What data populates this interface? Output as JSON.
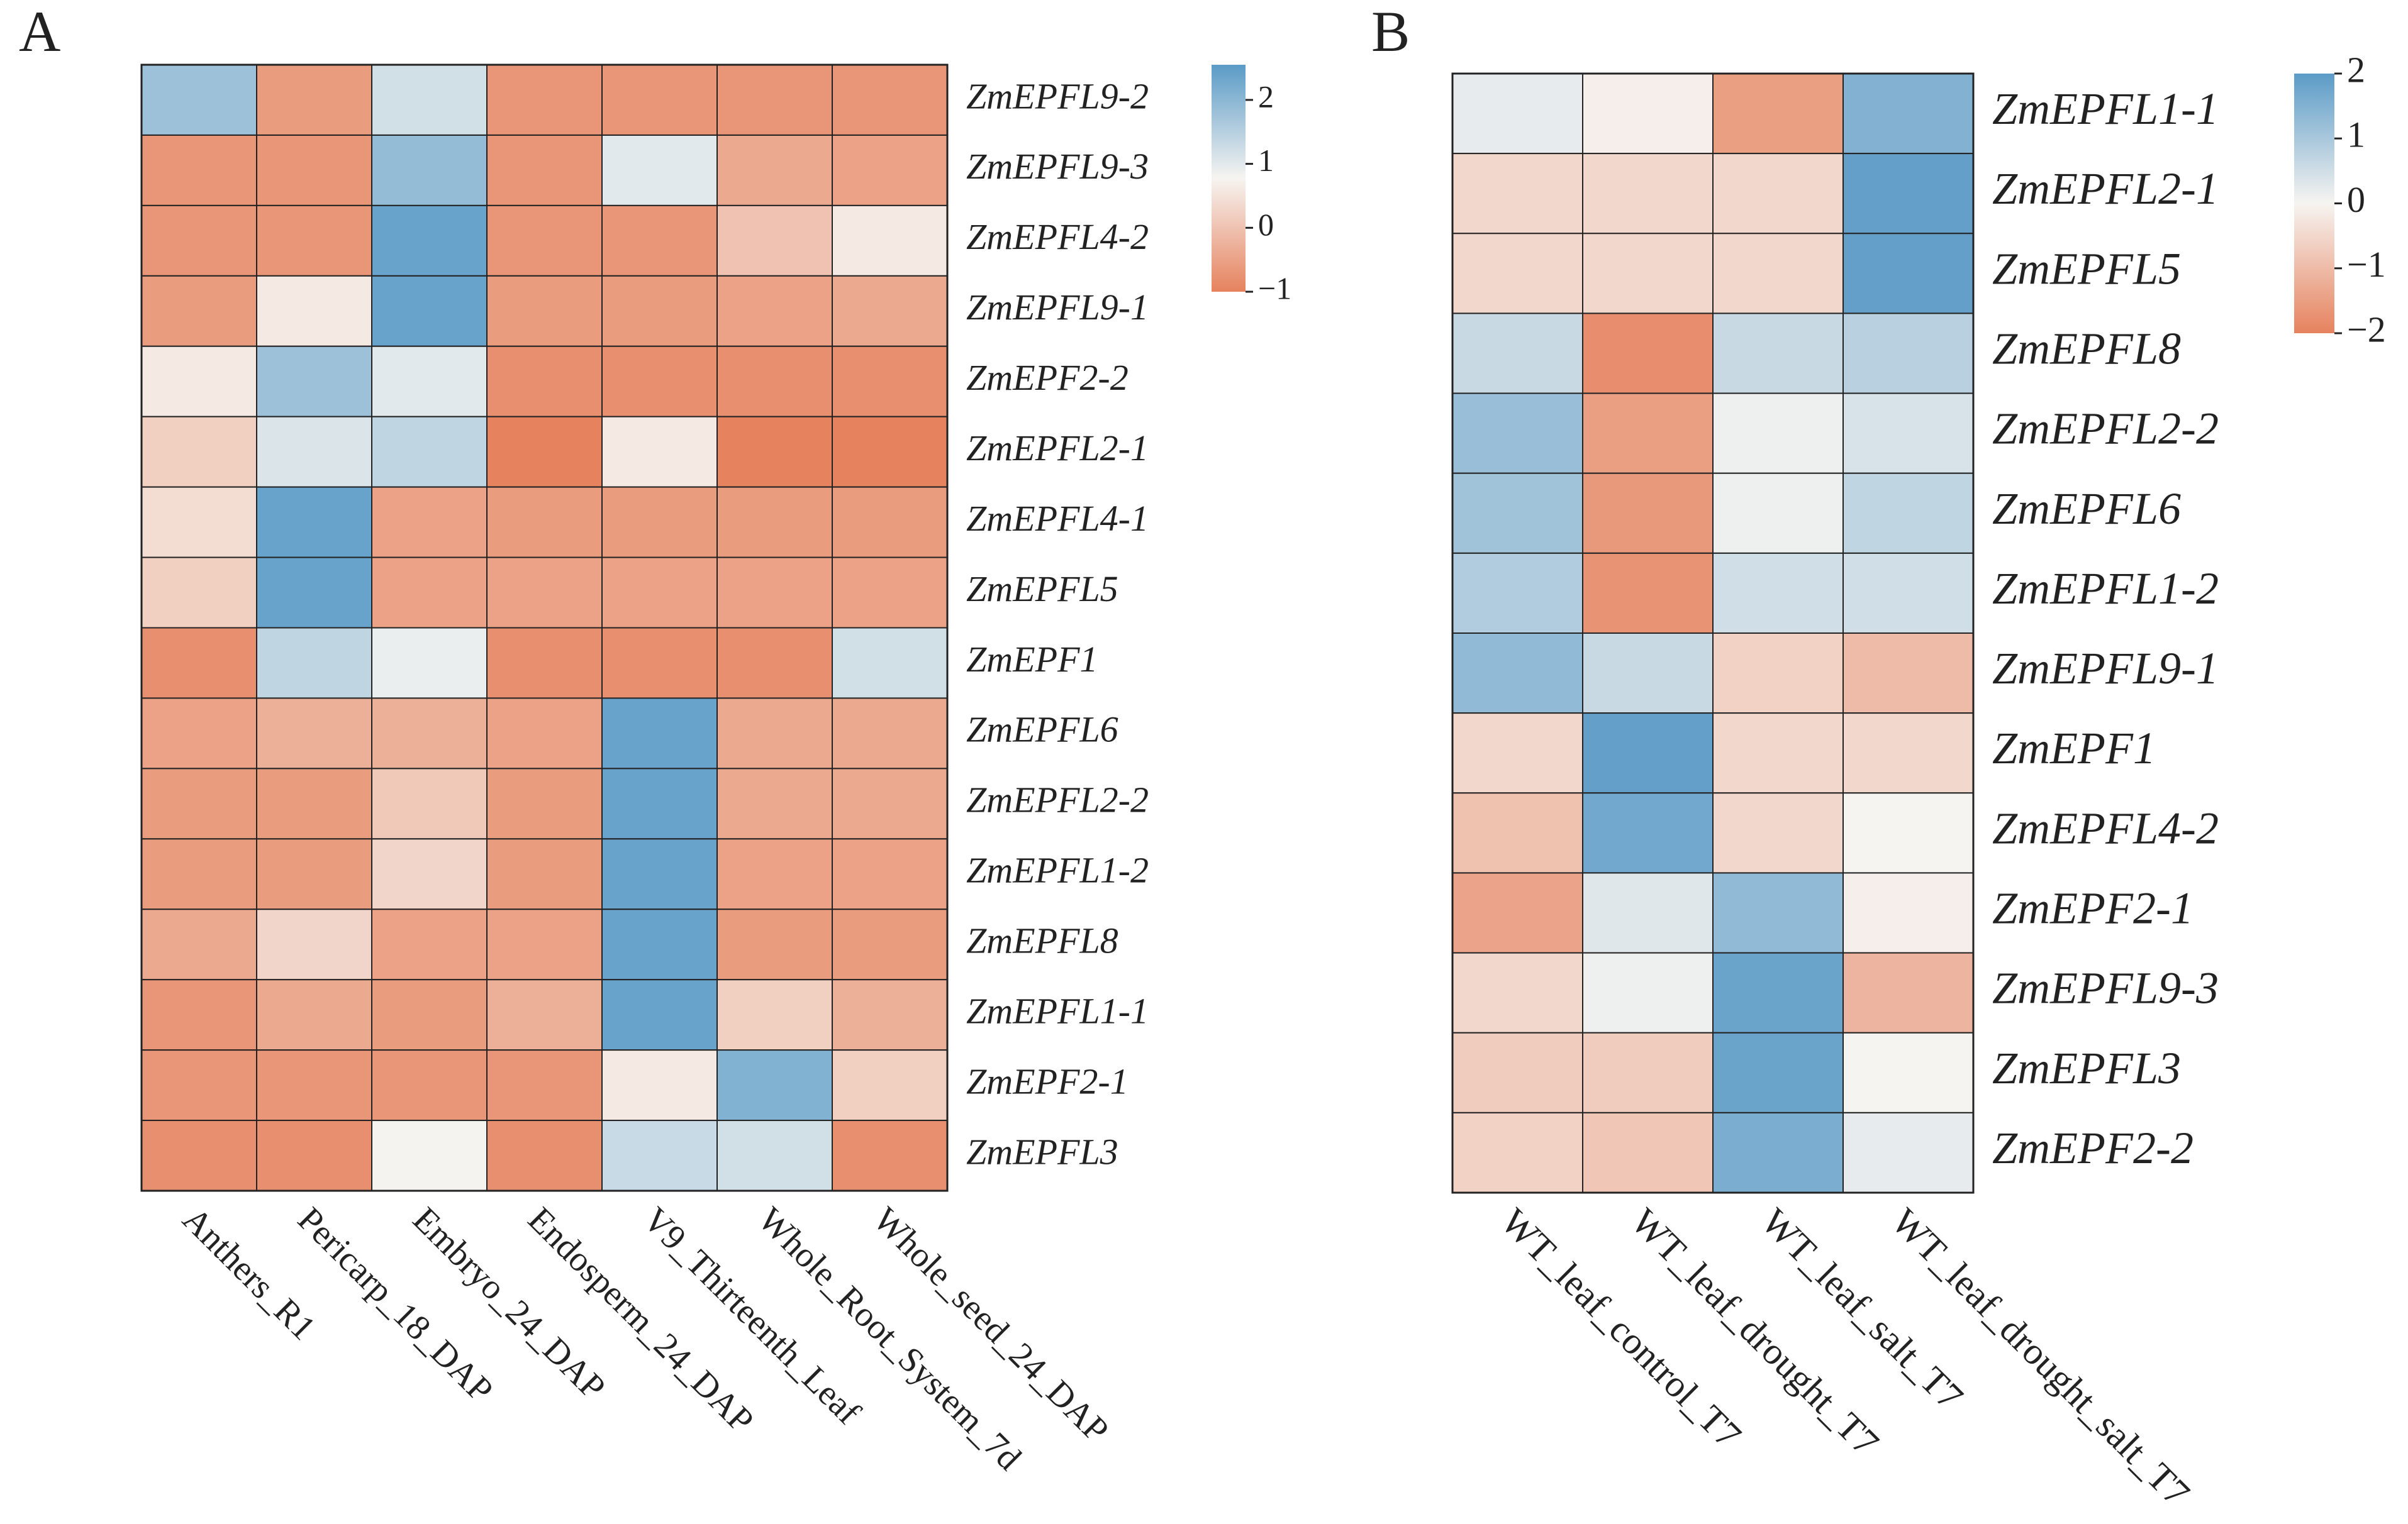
{
  "chart_data": [
    {
      "type": "heatmap",
      "panel_label": "A",
      "rows": [
        "ZmEPFL9-2",
        "ZmEPFL9-3",
        "ZmEPFL4-2",
        "ZmEPFL9-1",
        "ZmEPF2-2",
        "ZmEPFL2-1",
        "ZmEPFL4-1",
        "ZmEPFL5",
        "ZmEPF1",
        "ZmEPFL6",
        "ZmEPFL2-2",
        "ZmEPFL1-2",
        "ZmEPFL8",
        "ZmEPFL1-1",
        "ZmEPF2-1",
        "ZmEPFL3"
      ],
      "columns": [
        "Anthers_R1",
        "Pericarp_18_DAP",
        "Embryo_24_DAP",
        "Endosperm_24_DAP",
        "V9_Thirteenth_Leaf",
        "Whole_Root_System_7d",
        "Whole_seed_24_DAP"
      ],
      "values": [
        [
          1.8,
          -0.6,
          1.2,
          -0.7,
          -0.7,
          -0.7,
          -0.7
        ],
        [
          -0.7,
          -0.7,
          1.9,
          -0.7,
          1.0,
          -0.4,
          -0.5
        ],
        [
          -0.7,
          -0.7,
          2.4,
          -0.7,
          -0.7,
          0.0,
          0.6
        ],
        [
          -0.6,
          0.6,
          2.4,
          -0.6,
          -0.6,
          -0.5,
          -0.4
        ],
        [
          0.6,
          1.8,
          1.0,
          -0.8,
          -0.8,
          -0.8,
          -0.8
        ],
        [
          0.2,
          1.1,
          1.4,
          -1.0,
          0.6,
          -1.0,
          -1.0
        ],
        [
          0.4,
          2.4,
          -0.5,
          -0.6,
          -0.6,
          -0.6,
          -0.6
        ],
        [
          0.2,
          2.4,
          -0.5,
          -0.5,
          -0.5,
          -0.5,
          -0.5
        ],
        [
          -0.8,
          1.4,
          0.9,
          -0.8,
          -0.8,
          -0.8,
          1.2
        ],
        [
          -0.5,
          -0.3,
          -0.3,
          -0.5,
          2.4,
          -0.4,
          -0.4
        ],
        [
          -0.6,
          -0.6,
          0.1,
          -0.6,
          2.4,
          -0.4,
          -0.4
        ],
        [
          -0.6,
          -0.6,
          0.3,
          -0.6,
          2.4,
          -0.5,
          -0.5
        ],
        [
          -0.4,
          0.3,
          -0.5,
          -0.5,
          2.4,
          -0.6,
          -0.6
        ],
        [
          -0.7,
          -0.4,
          -0.6,
          -0.3,
          2.4,
          0.2,
          -0.3
        ],
        [
          -0.7,
          -0.7,
          -0.7,
          -0.7,
          0.6,
          2.1,
          0.2
        ],
        [
          -0.8,
          -0.8,
          0.8,
          -0.8,
          1.3,
          1.2,
          -0.8
        ]
      ],
      "zlim": [
        -1,
        2.55
      ],
      "zticks": [
        {
          "value": -1,
          "label": "−1"
        },
        0,
        1,
        2
      ],
      "colors": {
        "low": "#E6825E",
        "mid": "#F6F4F1",
        "high": "#5B9BC7"
      }
    },
    {
      "type": "heatmap",
      "panel_label": "B",
      "rows": [
        "ZmEPFL1-1",
        "ZmEPFL2-1",
        "ZmEPFL5",
        "ZmEPFL8",
        "ZmEPFL2-2",
        "ZmEPFL6",
        "ZmEPFL1-2",
        "ZmEPFL9-1",
        "ZmEPF1",
        "ZmEPFL4-2",
        "ZmEPF2-1",
        "ZmEPFL9-3",
        "ZmEPFL3",
        "ZmEPF2-2"
      ],
      "columns": [
        "WT_leaf_control_T7",
        "WT_leaf_drought_T7",
        "WT_leaf_salt_T7",
        "WT_leaf_drought_salt_T7"
      ],
      "values": [
        [
          0.2,
          -0.1,
          -1.5,
          1.5
        ],
        [
          -0.5,
          -0.5,
          -0.5,
          1.9
        ],
        [
          -0.5,
          -0.5,
          -0.5,
          1.9
        ],
        [
          0.6,
          -1.8,
          0.6,
          0.8
        ],
        [
          1.2,
          -1.5,
          0.1,
          0.4
        ],
        [
          1.1,
          -1.6,
          0.1,
          0.7
        ],
        [
          0.9,
          -1.7,
          0.5,
          0.5
        ],
        [
          1.3,
          0.6,
          -0.6,
          -1.0
        ],
        [
          -0.5,
          1.9,
          -0.5,
          -0.5
        ],
        [
          -0.9,
          1.7,
          -0.5,
          0.0
        ],
        [
          -1.4,
          0.3,
          1.3,
          -0.1
        ],
        [
          -0.5,
          0.1,
          1.8,
          -1.1
        ],
        [
          -0.7,
          -0.7,
          1.8,
          0.0
        ],
        [
          -0.6,
          -0.8,
          1.6,
          0.2
        ]
      ],
      "zlim": [
        -2,
        2
      ],
      "zticks": [
        {
          "value": -2,
          "label": "−2"
        },
        {
          "value": -1,
          "label": "−1"
        },
        0,
        1,
        2
      ],
      "colors": {
        "low": "#E6825E",
        "mid": "#F6F4F1",
        "high": "#5B9BC7"
      }
    }
  ]
}
